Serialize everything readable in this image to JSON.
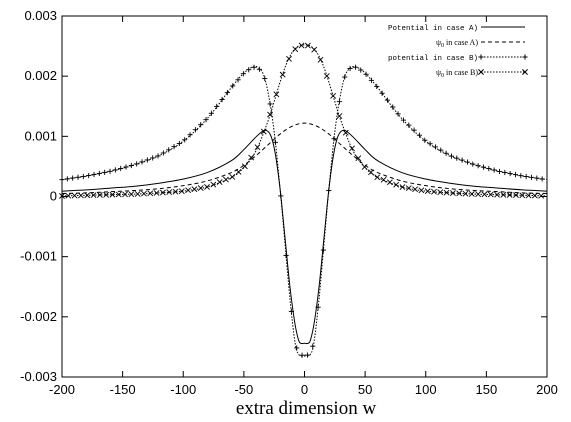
{
  "chart_data": {
    "type": "line",
    "title": "",
    "xlabel": "extra dimension w",
    "ylabel": "",
    "xlim": [
      -200,
      200
    ],
    "ylim": [
      -0.003,
      0.003
    ],
    "x_ticks": [
      "-200",
      "-150",
      "-100",
      "-50",
      "0",
      "50",
      "100",
      "150",
      "200"
    ],
    "y_ticks": [
      "-0.003",
      "-0.002",
      "-0.001",
      "0",
      "0.001",
      "0.002",
      "0.003"
    ],
    "legend_position": "top-right",
    "grid": false,
    "series": [
      {
        "name": "Potential in case A)",
        "style": "solid",
        "marker": "none",
        "x": [
          -200,
          -180,
          -160,
          -140,
          -120,
          -100,
          -80,
          -60,
          -50,
          -40,
          -33,
          -28,
          -24,
          -20,
          -16,
          -12,
          -8,
          -5,
          -3,
          0,
          3,
          5,
          8,
          12,
          16,
          20,
          24,
          28,
          33,
          40,
          50,
          60,
          80,
          100,
          120,
          140,
          160,
          180,
          200
        ],
        "y": [
          9e-05,
          0.00011,
          0.00014,
          0.00017,
          0.00022,
          0.00029,
          0.0004,
          0.0006,
          0.00078,
          0.00099,
          0.0011,
          0.00102,
          0.0007,
          0.0001,
          -0.0007,
          -0.0015,
          -0.0021,
          -0.00238,
          -0.00244,
          -0.00244,
          -0.00244,
          -0.00238,
          -0.0021,
          -0.0015,
          -0.0007,
          0.0001,
          0.0007,
          0.00102,
          0.0011,
          0.00099,
          0.00078,
          0.0006,
          0.0004,
          0.00029,
          0.00022,
          0.00017,
          0.00014,
          0.00011,
          9e-05
        ]
      },
      {
        "name": "ψ0 in case A)",
        "style": "dashed",
        "marker": "none",
        "x": [
          -200,
          -180,
          -160,
          -140,
          -120,
          -100,
          -80,
          -60,
          -50,
          -40,
          -30,
          -20,
          -10,
          0,
          10,
          20,
          30,
          40,
          50,
          60,
          80,
          100,
          120,
          140,
          160,
          180,
          200
        ],
        "y": [
          5e-05,
          6e-05,
          8e-05,
          0.0001,
          0.00013,
          0.00018,
          0.00026,
          0.0004,
          0.00052,
          0.00068,
          0.00086,
          0.00104,
          0.00117,
          0.00122,
          0.00117,
          0.00104,
          0.00086,
          0.00068,
          0.00052,
          0.0004,
          0.00026,
          0.00018,
          0.00013,
          0.0001,
          8e-05,
          6e-05,
          5e-05
        ]
      },
      {
        "name": "potential in case B)",
        "style": "dotted",
        "marker": "plus",
        "x": [
          -200,
          -180,
          -160,
          -140,
          -120,
          -100,
          -80,
          -60,
          -50,
          -43,
          -38,
          -33,
          -28,
          -24,
          -20,
          -16,
          -12,
          -8,
          -5,
          0,
          5,
          8,
          12,
          16,
          20,
          24,
          28,
          33,
          38,
          43,
          50,
          60,
          80,
          100,
          120,
          140,
          160,
          180,
          200
        ],
        "y": [
          0.00028,
          0.00034,
          0.00042,
          0.00053,
          0.00068,
          0.00092,
          0.0013,
          0.00182,
          0.00205,
          0.00215,
          0.00214,
          0.00198,
          0.0015,
          0.0009,
          0.0001,
          -0.0008,
          -0.0017,
          -0.0024,
          -0.00262,
          -0.00265,
          -0.00262,
          -0.0024,
          -0.0017,
          -0.0008,
          0.0001,
          0.0009,
          0.0015,
          0.00198,
          0.00214,
          0.00215,
          0.00205,
          0.00182,
          0.0013,
          0.00092,
          0.00068,
          0.00053,
          0.00042,
          0.00034,
          0.00028
        ]
      },
      {
        "name": "ψ0 in case B)",
        "style": "dotted",
        "marker": "cross",
        "x": [
          -200,
          -180,
          -160,
          -140,
          -120,
          -100,
          -80,
          -60,
          -50,
          -40,
          -30,
          -25,
          -20,
          -15,
          -10,
          -5,
          0,
          5,
          10,
          15,
          20,
          25,
          30,
          40,
          50,
          60,
          80,
          100,
          120,
          140,
          160,
          180,
          200
        ],
        "y": [
          1e-05,
          2e-05,
          3e-05,
          4e-05,
          6e-05,
          9e-05,
          0.00016,
          0.00032,
          0.00048,
          0.00076,
          0.00126,
          0.00158,
          0.00191,
          0.0022,
          0.0024,
          0.0025,
          0.00252,
          0.0025,
          0.0024,
          0.0022,
          0.00191,
          0.00158,
          0.00126,
          0.00076,
          0.00048,
          0.00032,
          0.00016,
          9e-05,
          6e-05,
          4e-05,
          3e-05,
          2e-05,
          1e-05
        ]
      }
    ],
    "legend": [
      {
        "text": "Potential in case A)",
        "kind": "plain"
      },
      {
        "text": "in case A)",
        "kind": "psi"
      },
      {
        "text": "potential in case B)",
        "kind": "plain"
      },
      {
        "text": "in case B)",
        "kind": "psi"
      }
    ]
  }
}
